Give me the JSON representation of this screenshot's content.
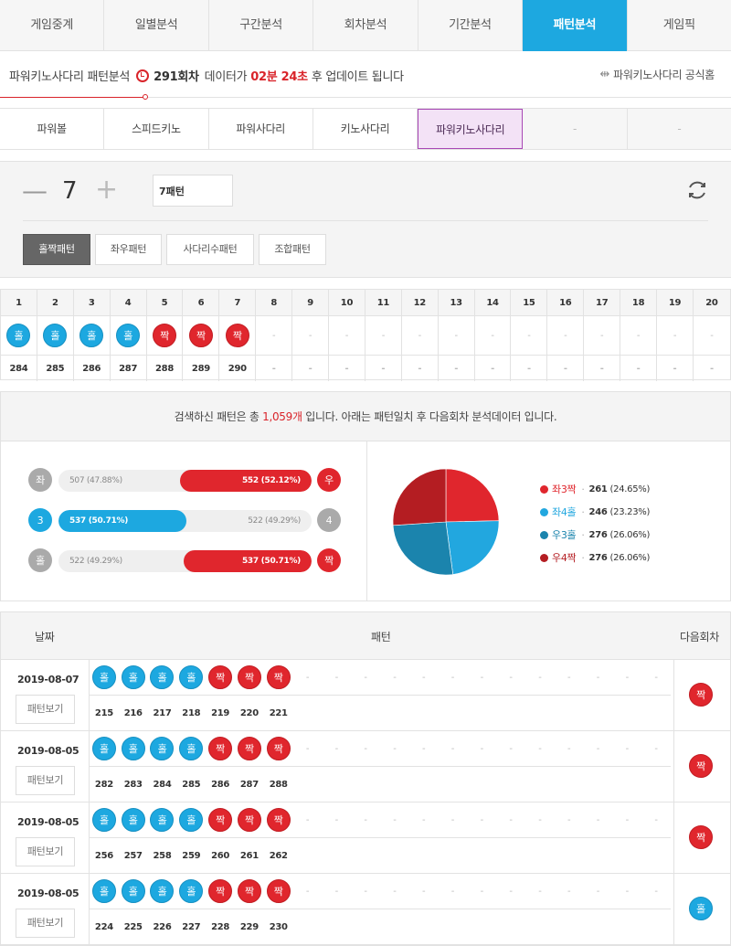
{
  "main_tabs": [
    "게임중계",
    "일별분석",
    "구간분석",
    "회차분석",
    "기간분석",
    "패턴분석",
    "게임픽"
  ],
  "info": {
    "prefix": "파워키노사다리 패턴분석",
    "round": "291회차",
    "mid": "데이터가",
    "time": "02분 24초",
    "suffix": "후 업데이트 됩니다",
    "official": "파워키노사다리 공식홈"
  },
  "sub_tabs": [
    "파워볼",
    "스피드키노",
    "파워사다리",
    "키노사다리",
    "파워키노사다리",
    "-",
    "-"
  ],
  "control": {
    "minus": "—",
    "count": "7",
    "plus": "+",
    "pattern_value": "7패턴",
    "buttons": [
      "홀짝패턴",
      "좌우패턴",
      "사다리수패턴",
      "조합패턴"
    ]
  },
  "round_table": {
    "headers": [
      "1",
      "2",
      "3",
      "4",
      "5",
      "6",
      "7",
      "8",
      "9",
      "10",
      "11",
      "12",
      "13",
      "14",
      "15",
      "16",
      "17",
      "18",
      "19",
      "20"
    ],
    "balls": [
      "홀",
      "홀",
      "홀",
      "홀",
      "짝",
      "짝",
      "짝",
      "-",
      "-",
      "-",
      "-",
      "-",
      "-",
      "-",
      "-",
      "-",
      "-",
      "-",
      "-",
      "-"
    ],
    "numbers": [
      "284",
      "285",
      "286",
      "287",
      "288",
      "289",
      "290",
      "-",
      "-",
      "-",
      "-",
      "-",
      "-",
      "-",
      "-",
      "-",
      "-",
      "-",
      "-",
      "-"
    ]
  },
  "summary": {
    "before": "검색하신 패턴은 총",
    "count": "1,059개",
    "after": "입니다. 아래는 패턴일치 후 다음회차 분석데이터 입니다."
  },
  "stats": [
    {
      "left_label": "좌",
      "left_text": "507 (47.88%)",
      "right_label": "우",
      "right_text": "552 (52.12%)",
      "left_value": 47.88,
      "right_value": 52.12,
      "winner": "right"
    },
    {
      "left_label": "3",
      "left_text": "537 (50.71%)",
      "right_label": "4",
      "right_text": "522 (49.29%)",
      "left_value": 50.71,
      "right_value": 49.29,
      "winner": "left"
    },
    {
      "left_label": "홀",
      "left_text": "522 (49.29%)",
      "right_label": "짝",
      "right_text": "537 (50.71%)",
      "left_value": 49.29,
      "right_value": 50.71,
      "winner": "right"
    }
  ],
  "pie": [
    {
      "name": "좌3짝",
      "count": "261",
      "pct": "(24.65%)",
      "value": 24.65,
      "color": "#e0262d"
    },
    {
      "name": "좌4홀",
      "count": "246",
      "pct": "(23.23%)",
      "value": 23.23,
      "color": "#22a7df"
    },
    {
      "name": "우3홀",
      "count": "276",
      "pct": "(26.06%)",
      "value": 26.06,
      "color": "#1b84ad"
    },
    {
      "name": "우4짝",
      "count": "276",
      "pct": "(26.06%)",
      "value": 26.06,
      "color": "#b41d22"
    }
  ],
  "history": {
    "headers": {
      "date": "날짜",
      "pattern": "패턴",
      "next": "다음회차"
    },
    "view_label": "패턴보기",
    "records": [
      {
        "date": "2019-08-07",
        "balls": [
          "홀",
          "홀",
          "홀",
          "홀",
          "짝",
          "짝",
          "짝"
        ],
        "numbers": [
          "215",
          "216",
          "217",
          "218",
          "219",
          "220",
          "221"
        ],
        "next": "짝"
      },
      {
        "date": "2019-08-05",
        "balls": [
          "홀",
          "홀",
          "홀",
          "홀",
          "짝",
          "짝",
          "짝"
        ],
        "numbers": [
          "282",
          "283",
          "284",
          "285",
          "286",
          "287",
          "288"
        ],
        "next": "짝"
      },
      {
        "date": "2019-08-05",
        "balls": [
          "홀",
          "홀",
          "홀",
          "홀",
          "짝",
          "짝",
          "짝"
        ],
        "numbers": [
          "256",
          "257",
          "258",
          "259",
          "260",
          "261",
          "262"
        ],
        "next": "짝"
      },
      {
        "date": "2019-08-05",
        "balls": [
          "홀",
          "홀",
          "홀",
          "홀",
          "짝",
          "짝",
          "짝"
        ],
        "numbers": [
          "224",
          "225",
          "226",
          "227",
          "228",
          "229",
          "230"
        ],
        "next": "홀"
      }
    ]
  }
}
